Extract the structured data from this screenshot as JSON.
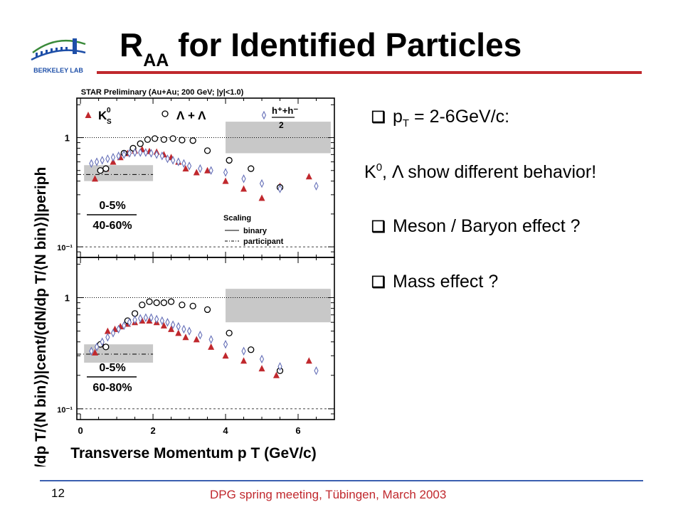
{
  "slide": {
    "title_main": "R",
    "title_sub": "AA",
    "title_rest": " for Identified Particles",
    "logo_text": "BERKELEY LAB",
    "page_number": "12",
    "footer": "DPG spring meeting, Tübingen, March 2003"
  },
  "bullets": [
    {
      "check": "❑",
      "parts": [
        "p",
        "T",
        " = 2-6GeV/c:"
      ]
    },
    {
      "check": "",
      "parts": [
        "K",
        "0",
        ", Λ show different behavior!"
      ]
    },
    {
      "check": "❑",
      "text": "Meson / Baryon effect ?"
    },
    {
      "check": "❑",
      "text": "Mass effect ?"
    }
  ],
  "colors": {
    "accent": "#c0282d",
    "footer_line": "#3a5fb0",
    "hyperon_open": "#000000",
    "hadron": "#6670b8",
    "band": "#c8c8c8"
  },
  "chart_data": {
    "type": "scatter",
    "log_y": true,
    "title": "STAR Preliminary (Au+Au; 200 GeV; |y|<1.0)",
    "xlabel": "Transverse Momentum p T (GeV/c)",
    "ylabel": "(dN/dp T/⟨N bin⟩)|cent/(dN/dp T/⟨N bin⟩)|periph",
    "xlim": [
      -0.1,
      7.0
    ],
    "ylim": [
      0.08,
      2.3
    ],
    "x_ticks": [
      0,
      2,
      4,
      6
    ],
    "y_tick_labels": [
      "10⁻¹",
      "1"
    ],
    "legend": {
      "k0": "K",
      "k0_sup": "0",
      "k0_sub": "S",
      "lambda": "Λ + Λ",
      "hadron_num": "h⁺+h⁻",
      "hadron_den": "2",
      "scaling_title": "Scaling",
      "binary": "binary",
      "participant": "participant"
    },
    "panels": [
      {
        "label_top": "0-5%",
        "label_bottom": "40-60%",
        "binary_ref": 1.0,
        "participant_ref": 0.46,
        "bands": [
          {
            "x": [
              0.1,
              2.0
            ],
            "y": [
              0.4,
              0.56
            ]
          },
          {
            "x": [
              4.0,
              6.9
            ],
            "y": [
              0.72,
              1.4
            ]
          }
        ],
        "series": [
          {
            "name": "K0S",
            "marker": "triangle",
            "x": [
              0.4,
              0.7,
              0.9,
              1.1,
              1.3,
              1.5,
              1.7,
              1.9,
              2.1,
              2.3,
              2.5,
              2.7,
              2.9,
              3.2,
              3.5,
              4.0,
              4.5,
              5.0,
              5.5,
              6.3
            ],
            "y": [
              0.42,
              0.52,
              0.6,
              0.66,
              0.72,
              0.76,
              0.78,
              0.75,
              0.74,
              0.7,
              0.66,
              0.6,
              0.52,
              0.48,
              0.5,
              0.4,
              0.34,
              0.28,
              0.36,
              0.44
            ]
          },
          {
            "name": "Lambda",
            "marker": "circle",
            "x": [
              0.55,
              0.7,
              1.2,
              1.45,
              1.65,
              1.85,
              2.05,
              2.3,
              2.55,
              2.8,
              3.1,
              3.5,
              4.1,
              4.7,
              5.5
            ],
            "y": [
              0.5,
              0.52,
              0.72,
              0.8,
              0.88,
              0.96,
              0.98,
              0.96,
              0.98,
              0.95,
              0.94,
              0.76,
              0.62,
              0.52,
              0.35
            ]
          },
          {
            "name": "h+h-",
            "marker": "diamond",
            "x": [
              0.3,
              0.45,
              0.6,
              0.75,
              0.9,
              1.05,
              1.2,
              1.35,
              1.5,
              1.65,
              1.8,
              1.95,
              2.1,
              2.25,
              2.4,
              2.55,
              2.7,
              2.85,
              3.0,
              3.3,
              3.6,
              4.0,
              4.5,
              5.0,
              5.5,
              6.5
            ],
            "y": [
              0.58,
              0.6,
              0.62,
              0.64,
              0.66,
              0.68,
              0.7,
              0.72,
              0.73,
              0.73,
              0.73,
              0.72,
              0.7,
              0.68,
              0.64,
              0.62,
              0.6,
              0.58,
              0.55,
              0.52,
              0.5,
              0.48,
              0.42,
              0.38,
              0.34,
              0.36
            ]
          }
        ]
      },
      {
        "label_top": "0-5%",
        "label_bottom": "60-80%",
        "binary_ref": 1.0,
        "participant_ref": 0.31,
        "bands": [
          {
            "x": [
              0.1,
              2.0
            ],
            "y": [
              0.26,
              0.38
            ]
          },
          {
            "x": [
              4.0,
              6.9
            ],
            "y": [
              0.6,
              1.2
            ]
          }
        ],
        "series": [
          {
            "name": "K0S",
            "marker": "triangle",
            "x": [
              0.4,
              0.6,
              0.75,
              0.95,
              1.1,
              1.3,
              1.5,
              1.7,
              1.9,
              2.1,
              2.3,
              2.5,
              2.7,
              2.9,
              3.2,
              3.6,
              4.0,
              4.5,
              5.0,
              5.4,
              6.3
            ],
            "y": [
              0.32,
              0.38,
              0.5,
              0.52,
              0.55,
              0.58,
              0.6,
              0.62,
              0.62,
              0.6,
              0.56,
              0.52,
              0.48,
              0.44,
              0.42,
              0.36,
              0.3,
              0.27,
              0.23,
              0.2,
              0.27
            ]
          },
          {
            "name": "Lambda",
            "marker": "circle",
            "x": [
              0.55,
              0.7,
              1.3,
              1.5,
              1.7,
              1.9,
              2.1,
              2.3,
              2.5,
              2.8,
              3.1,
              3.5,
              4.1,
              4.7,
              5.5
            ],
            "y": [
              0.38,
              0.36,
              0.62,
              0.72,
              0.86,
              0.92,
              0.9,
              0.9,
              0.92,
              0.86,
              0.84,
              0.78,
              0.48,
              0.34,
              0.22
            ]
          },
          {
            "name": "h+h-",
            "marker": "diamond",
            "x": [
              0.3,
              0.45,
              0.6,
              0.75,
              0.9,
              1.05,
              1.2,
              1.35,
              1.5,
              1.65,
              1.8,
              1.95,
              2.1,
              2.25,
              2.4,
              2.55,
              2.7,
              2.85,
              3.0,
              3.3,
              3.6,
              4.0,
              4.5,
              5.0,
              5.5,
              6.5
            ],
            "y": [
              0.33,
              0.36,
              0.4,
              0.44,
              0.48,
              0.52,
              0.56,
              0.6,
              0.63,
              0.65,
              0.66,
              0.66,
              0.64,
              0.62,
              0.6,
              0.57,
              0.55,
              0.52,
              0.5,
              0.46,
              0.42,
              0.38,
              0.33,
              0.28,
              0.24,
              0.22
            ]
          }
        ]
      }
    ]
  }
}
